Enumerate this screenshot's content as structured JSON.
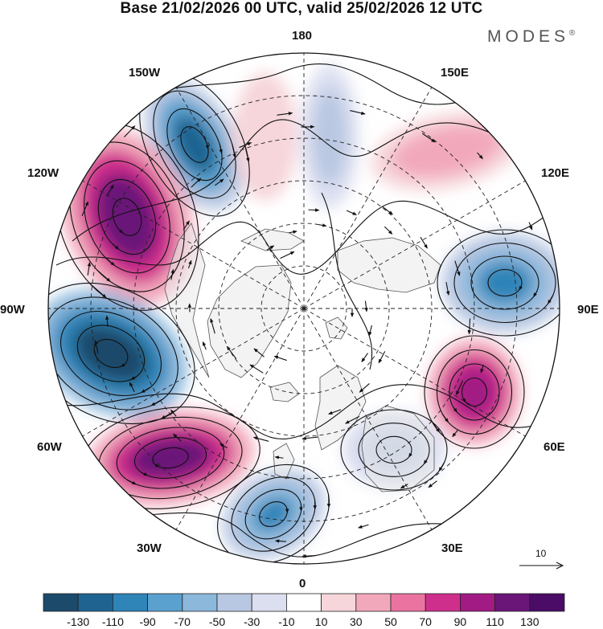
{
  "title": "Base 21/02/2026 00 UTC, valid 25/02/2026 12 UTC",
  "brand": "MODES",
  "brand_mark": "®",
  "longitude_labels": {
    "lon_180": "180",
    "lon_150e": "150E",
    "lon_120e": "120E",
    "lon_90e": "90E",
    "lon_60e": "60E",
    "lon_30e": "30E",
    "lon_0": "0",
    "lon_30w": "30W",
    "lon_60w": "60W",
    "lon_90w": "90W",
    "lon_120w": "120W",
    "lon_150w": "150W"
  },
  "vector_scale_label": "10",
  "colorbar": {
    "labels": [
      "-130",
      "-110",
      "-90",
      "-70",
      "-50",
      "-30",
      "-10",
      "10",
      "30",
      "50",
      "70",
      "90",
      "110",
      "130"
    ],
    "colors": [
      "#1b4a6b",
      "#1f6491",
      "#2f84b8",
      "#5aa1cf",
      "#8cb8dc",
      "#b9c8e2",
      "#dcdff0",
      "#ffffff",
      "#f6d6da",
      "#f2a8bb",
      "#eb73a0",
      "#cf2f8c",
      "#a21a84",
      "#6a1679",
      "#4a0c66"
    ]
  },
  "anomaly_centers": [
    {
      "name": "low-150w",
      "value": -110
    },
    {
      "name": "high-120w",
      "value": 130
    },
    {
      "name": "low-90w",
      "value": -130
    },
    {
      "name": "high-60w",
      "value": 130
    },
    {
      "name": "low-30w",
      "value": -90
    },
    {
      "name": "low-90e",
      "value": -90
    },
    {
      "name": "high-60e",
      "value": 110
    },
    {
      "name": "high-150e",
      "value": 50
    },
    {
      "name": "high-165w",
      "value": 30
    },
    {
      "name": "low-175e",
      "value": -30
    },
    {
      "name": "low-30e",
      "value": -30
    }
  ],
  "colors": {
    "land": "#ececec",
    "coast": "#444444",
    "grid": "#222222",
    "vector": "#111111"
  }
}
